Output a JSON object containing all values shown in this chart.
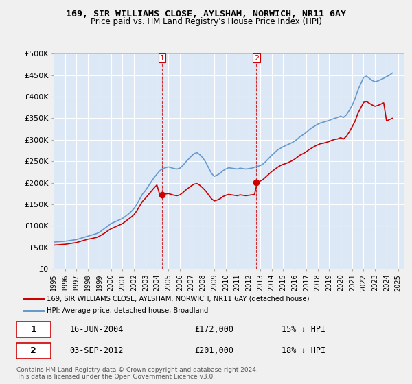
{
  "title": "169, SIR WILLIAMS CLOSE, AYLSHAM, NORWICH, NR11 6AY",
  "subtitle": "Price paid vs. HM Land Registry's House Price Index (HPI)",
  "ylabel_ticks": [
    "£0",
    "£50K",
    "£100K",
    "£150K",
    "£200K",
    "£250K",
    "£300K",
    "£350K",
    "£400K",
    "£450K",
    "£500K"
  ],
  "ytick_vals": [
    0,
    50000,
    100000,
    150000,
    200000,
    250000,
    300000,
    350000,
    400000,
    450000,
    500000
  ],
  "ylim": [
    0,
    500000
  ],
  "xlim_start": 1995.0,
  "xlim_end": 2025.5,
  "background_color": "#f0f4fa",
  "plot_bg_color": "#dce8f5",
  "grid_color": "#ffffff",
  "red_line_color": "#cc0000",
  "blue_line_color": "#6699cc",
  "marker1_date": 2004.46,
  "marker1_value": 172000,
  "marker2_date": 2012.67,
  "marker2_value": 201000,
  "vline_color": "#cc0000",
  "legend_label_red": "169, SIR WILLIAMS CLOSE, AYLSHAM, NORWICH, NR11 6AY (detached house)",
  "legend_label_blue": "HPI: Average price, detached house, Broadland",
  "annotation1_num": "1",
  "annotation1_date": "16-JUN-2004",
  "annotation1_price": "£172,000",
  "annotation1_hpi": "15% ↓ HPI",
  "annotation2_num": "2",
  "annotation2_date": "03-SEP-2012",
  "annotation2_price": "£201,000",
  "annotation2_hpi": "18% ↓ HPI",
  "footer": "Contains HM Land Registry data © Crown copyright and database right 2024.\nThis data is licensed under the Open Government Licence v3.0.",
  "hpi_data": {
    "years": [
      1995.0,
      1995.25,
      1995.5,
      1995.75,
      1996.0,
      1996.25,
      1996.5,
      1996.75,
      1997.0,
      1997.25,
      1997.5,
      1997.75,
      1998.0,
      1998.25,
      1998.5,
      1998.75,
      1999.0,
      1999.25,
      1999.5,
      1999.75,
      2000.0,
      2000.25,
      2000.5,
      2000.75,
      2001.0,
      2001.25,
      2001.5,
      2001.75,
      2002.0,
      2002.25,
      2002.5,
      2002.75,
      2003.0,
      2003.25,
      2003.5,
      2003.75,
      2004.0,
      2004.25,
      2004.5,
      2004.75,
      2005.0,
      2005.25,
      2005.5,
      2005.75,
      2006.0,
      2006.25,
      2006.5,
      2006.75,
      2007.0,
      2007.25,
      2007.5,
      2007.75,
      2008.0,
      2008.25,
      2008.5,
      2008.75,
      2009.0,
      2009.25,
      2009.5,
      2009.75,
      2010.0,
      2010.25,
      2010.5,
      2010.75,
      2011.0,
      2011.25,
      2011.5,
      2011.75,
      2012.0,
      2012.25,
      2012.5,
      2012.75,
      2013.0,
      2013.25,
      2013.5,
      2013.75,
      2014.0,
      2014.25,
      2014.5,
      2014.75,
      2015.0,
      2015.25,
      2015.5,
      2015.75,
      2016.0,
      2016.25,
      2016.5,
      2016.75,
      2017.0,
      2017.25,
      2017.5,
      2017.75,
      2018.0,
      2018.25,
      2018.5,
      2018.75,
      2019.0,
      2019.25,
      2019.5,
      2019.75,
      2020.0,
      2020.25,
      2020.5,
      2020.75,
      2021.0,
      2021.25,
      2021.5,
      2021.75,
      2022.0,
      2022.25,
      2022.5,
      2022.75,
      2023.0,
      2023.25,
      2023.5,
      2023.75,
      2024.0,
      2024.25,
      2024.5
    ],
    "values": [
      62000,
      62500,
      63000,
      63500,
      64000,
      65000,
      66000,
      67000,
      68000,
      70000,
      72000,
      74000,
      76000,
      78000,
      80000,
      82000,
      85000,
      90000,
      95000,
      100000,
      105000,
      108000,
      111000,
      114000,
      117000,
      122000,
      127000,
      133000,
      140000,
      150000,
      162000,
      174000,
      182000,
      192000,
      202000,
      212000,
      220000,
      228000,
      233000,
      235000,
      237000,
      235000,
      233000,
      232000,
      234000,
      240000,
      248000,
      255000,
      262000,
      268000,
      270000,
      265000,
      258000,
      248000,
      235000,
      222000,
      215000,
      218000,
      222000,
      228000,
      232000,
      235000,
      234000,
      233000,
      232000,
      234000,
      233000,
      232000,
      233000,
      234000,
      236000,
      238000,
      240000,
      244000,
      250000,
      257000,
      264000,
      270000,
      276000,
      280000,
      284000,
      287000,
      290000,
      293000,
      297000,
      302000,
      308000,
      312000,
      317000,
      323000,
      328000,
      332000,
      336000,
      339000,
      341000,
      343000,
      345000,
      348000,
      350000,
      352000,
      355000,
      352000,
      358000,
      368000,
      380000,
      395000,
      415000,
      430000,
      445000,
      448000,
      443000,
      438000,
      435000,
      437000,
      440000,
      443000,
      447000,
      450000,
      455000
    ]
  },
  "price_paid_data": {
    "years": [
      1995.0,
      1995.25,
      1995.5,
      1995.75,
      1996.0,
      1996.25,
      1996.5,
      1996.75,
      1997.0,
      1997.25,
      1997.5,
      1997.75,
      1998.0,
      1998.25,
      1998.5,
      1998.75,
      1999.0,
      1999.25,
      1999.5,
      1999.75,
      2000.0,
      2000.25,
      2000.5,
      2000.75,
      2001.0,
      2001.25,
      2001.5,
      2001.75,
      2002.0,
      2002.25,
      2002.5,
      2002.75,
      2003.0,
      2003.25,
      2003.5,
      2003.75,
      2004.0,
      2004.25,
      2004.5,
      2004.75,
      2005.0,
      2005.25,
      2005.5,
      2005.75,
      2006.0,
      2006.25,
      2006.5,
      2006.75,
      2007.0,
      2007.25,
      2007.5,
      2007.75,
      2008.0,
      2008.25,
      2008.5,
      2008.75,
      2009.0,
      2009.25,
      2009.5,
      2009.75,
      2010.0,
      2010.25,
      2010.5,
      2010.75,
      2011.0,
      2011.25,
      2011.5,
      2011.75,
      2012.0,
      2012.25,
      2012.5,
      2012.75,
      2013.0,
      2013.25,
      2013.5,
      2013.75,
      2014.0,
      2014.25,
      2014.5,
      2014.75,
      2015.0,
      2015.25,
      2015.5,
      2015.75,
      2016.0,
      2016.25,
      2016.5,
      2016.75,
      2017.0,
      2017.25,
      2017.5,
      2017.75,
      2018.0,
      2018.25,
      2018.5,
      2018.75,
      2019.0,
      2019.25,
      2019.5,
      2019.75,
      2020.0,
      2020.25,
      2020.5,
      2020.75,
      2021.0,
      2021.25,
      2021.5,
      2021.75,
      2022.0,
      2022.25,
      2022.5,
      2022.75,
      2023.0,
      2023.25,
      2023.5,
      2023.75,
      2024.0,
      2024.25,
      2024.5
    ],
    "values": [
      55000,
      55500,
      56000,
      56500,
      57000,
      58000,
      59000,
      60000,
      61000,
      63000,
      65000,
      67000,
      69000,
      70000,
      71500,
      73000,
      76000,
      80000,
      84000,
      89000,
      93000,
      96000,
      99000,
      102000,
      105000,
      110000,
      115000,
      120000,
      126000,
      135000,
      146000,
      157000,
      164000,
      172000,
      180000,
      188000,
      195000,
      172000,
      172000,
      174000,
      175000,
      173000,
      171000,
      170000,
      172000,
      177000,
      183000,
      188000,
      193000,
      197000,
      198000,
      194000,
      188000,
      181000,
      172000,
      163000,
      158000,
      160000,
      163000,
      168000,
      171000,
      173000,
      172000,
      171000,
      170000,
      172000,
      171000,
      170000,
      171000,
      172000,
      173000,
      201000,
      204000,
      208000,
      214000,
      220000,
      226000,
      231000,
      236000,
      240000,
      243000,
      245000,
      248000,
      251000,
      255000,
      260000,
      265000,
      268000,
      272000,
      277000,
      281000,
      285000,
      288000,
      291000,
      292000,
      294000,
      296000,
      299000,
      301000,
      302000,
      305000,
      302000,
      308000,
      318000,
      330000,
      343000,
      361000,
      374000,
      387000,
      389000,
      385000,
      381000,
      378000,
      380000,
      383000,
      386000,
      344000,
      347000,
      350000
    ]
  }
}
